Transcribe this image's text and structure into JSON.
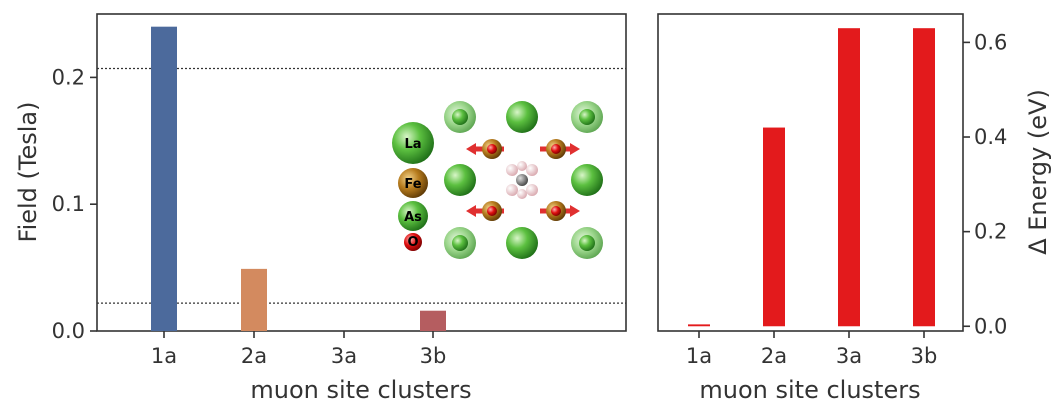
{
  "chart_data": [
    {
      "type": "bar",
      "categories": [
        "1a",
        "2a",
        "3a",
        "3b"
      ],
      "values": [
        0.24,
        0.049,
        0.0,
        0.016
      ],
      "colors": [
        "#4c6a9c",
        "#d38a5f",
        "#55a868",
        "#b55d60"
      ],
      "xlabel": "muon site clusters",
      "ylabel": "Field (Tesla)",
      "ylim": [
        0,
        0.25
      ],
      "yticks": [
        "0.0",
        "0.1",
        "0.2"
      ],
      "reference_lines": [
        0.207,
        0.022
      ],
      "grid": false,
      "inset": {
        "legend": [
          "La",
          "Fe",
          "As",
          "O"
        ],
        "legend_colors": [
          "#4aa83c",
          "#a86a12",
          "#4aa83c",
          "#e02020"
        ]
      }
    },
    {
      "type": "bar",
      "categories": [
        "1a",
        "2a",
        "3a",
        "3b"
      ],
      "values": [
        0.004,
        0.42,
        0.63,
        0.63
      ],
      "color": "#e31a1c",
      "xlabel": "muon site clusters",
      "ylabel": "Δ Energy (eV)",
      "ylim": [
        -0.01,
        0.66
      ],
      "yticks": [
        "0.0",
        "0.2",
        "0.4",
        "0.6"
      ],
      "yaxis_side": "right",
      "grid": false
    }
  ]
}
